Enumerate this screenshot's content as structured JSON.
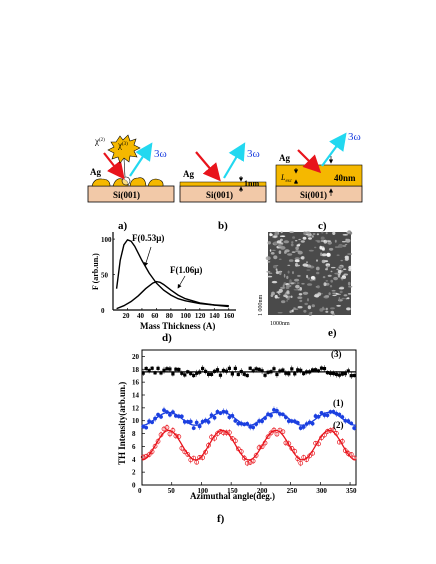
{
  "panels": {
    "a": {
      "label": "a)",
      "substrate": "Si(001)",
      "metal": "Ag",
      "chi_outer": "χ",
      "chi_outer_sup": "(2)",
      "chi_inner": "χ",
      "chi_inner_sup": "(3)",
      "harmonic": "3ω"
    },
    "b": {
      "label": "b)",
      "substrate": "Si(001)",
      "metal": "Ag",
      "thickness": "1nm",
      "harmonic": "3ω"
    },
    "c": {
      "label": "c)",
      "substrate": "Si(001)",
      "metal": "Ag",
      "length": "L",
      "length_sub": "esc",
      "thickness": "40nm",
      "harmonic": "3ω"
    },
    "d": {
      "label": "d)",
      "curve1_label": "F(0.53μ)",
      "curve2_label": "F(1.06μ)"
    },
    "e": {
      "label": "e)",
      "scale_x": "1000nm",
      "scale_y": "1 000nm"
    },
    "f": {
      "label": "f)",
      "series_labels": [
        "(3)",
        "(1)",
        "(2)"
      ]
    }
  },
  "colors": {
    "substrate": "#f2c9a8",
    "ag": "#f5b800",
    "red_beam": "#e8141c",
    "cyan_beam": "#22d8f0",
    "blue": "#1b3fe0",
    "red": "#e8141c",
    "black": "#000000"
  },
  "chart_data": [
    {
      "type": "line",
      "panel": "d",
      "xlabel": "Mass Thickness (A)",
      "ylabel": "F (arb.un.)",
      "xlim": [
        0,
        170
      ],
      "ylim": [
        0,
        110
      ],
      "xticks": [
        20,
        40,
        60,
        80,
        100,
        120,
        140,
        160
      ],
      "yticks": [
        0,
        50,
        100
      ],
      "series": [
        {
          "name": "F(0.53μ)",
          "x": [
            5,
            10,
            15,
            20,
            25,
            30,
            35,
            40,
            50,
            60,
            70,
            80,
            90,
            100,
            120,
            140,
            160
          ],
          "values": [
            30,
            70,
            92,
            99,
            97,
            90,
            80,
            70,
            52,
            38,
            28,
            21,
            16,
            13,
            9,
            7,
            6
          ]
        },
        {
          "name": "F(1.06μ)",
          "x": [
            5,
            15,
            25,
            35,
            45,
            55,
            60,
            65,
            70,
            80,
            90,
            100,
            120,
            140,
            160
          ],
          "values": [
            2,
            6,
            12,
            20,
            30,
            38,
            40,
            39,
            36,
            28,
            21,
            16,
            10,
            7,
            5
          ]
        }
      ]
    },
    {
      "type": "scatter",
      "panel": "f",
      "xlabel": "Azimuthal angle(deg.)",
      "ylabel": "TH Intensity(arb.un.)",
      "xlim": [
        0,
        360
      ],
      "ylim": [
        0,
        21
      ],
      "xticks": [
        0,
        50,
        100,
        150,
        200,
        250,
        300,
        350
      ],
      "yticks": [
        0,
        2,
        4,
        6,
        8,
        10,
        12,
        14,
        16,
        18,
        20
      ],
      "series": [
        {
          "name": "(3)",
          "mean": 17.6,
          "amplitude": 0.0,
          "noise": 0.6
        },
        {
          "name": "(1)",
          "mean": 10.3,
          "amplitude": 1.0,
          "noise": 0.5
        },
        {
          "name": "(2)",
          "mean": 6.2,
          "amplitude": 2.3,
          "noise": 0.6
        }
      ]
    }
  ]
}
